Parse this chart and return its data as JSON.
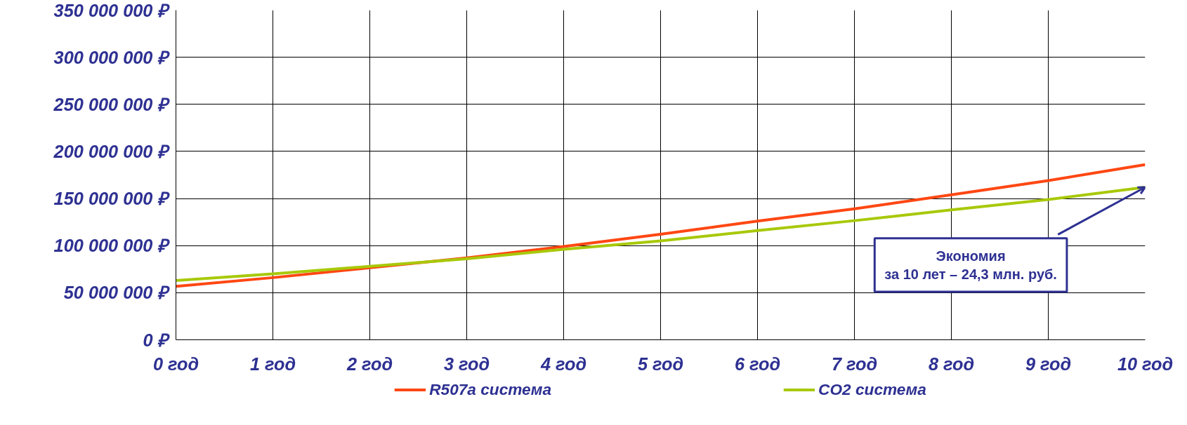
{
  "chart_data": {
    "type": "line",
    "categories": [
      "0 год",
      "1 год",
      "2 год",
      "3 год",
      "4 год",
      "5 год",
      "6 год",
      "7 год",
      "8 год",
      "9 год",
      "10 год"
    ],
    "series": [
      {
        "name": "R507a система",
        "color": "#ff4713",
        "values": [
          56800000,
          66000000,
          76500000,
          87000000,
          99000000,
          112000000,
          126000000,
          139000000,
          154000000,
          169000000,
          186000000
        ]
      },
      {
        "name": "CO2 система",
        "color": "#a8c90a",
        "values": [
          63000000,
          70000000,
          78000000,
          86000000,
          96000000,
          105000000,
          116000000,
          126500000,
          138000000,
          149000000,
          162000000
        ]
      }
    ],
    "ylim": [
      0,
      350000000
    ],
    "yticks": [
      {
        "value": 0,
        "label": "0 ₽"
      },
      {
        "value": 50000000,
        "label": "50 000 000 ₽"
      },
      {
        "value": 100000000,
        "label": "100 000 000 ₽"
      },
      {
        "value": 150000000,
        "label": "150 000 000 ₽"
      },
      {
        "value": 200000000,
        "label": "200 000 000 ₽"
      },
      {
        "value": 250000000,
        "label": "250 000 000 ₽"
      },
      {
        "value": 300000000,
        "label": "300 000 000 ₽"
      },
      {
        "value": 350000000,
        "label": "350 000 000 ₽"
      }
    ],
    "grid": true,
    "legend": "bottom",
    "marker": "none",
    "line_style": "solid",
    "annotations": [
      {
        "text": "Экономия\nза 10 лет – 24,3 млн. руб.",
        "x": "10 год",
        "y": 162000000
      }
    ]
  }
}
